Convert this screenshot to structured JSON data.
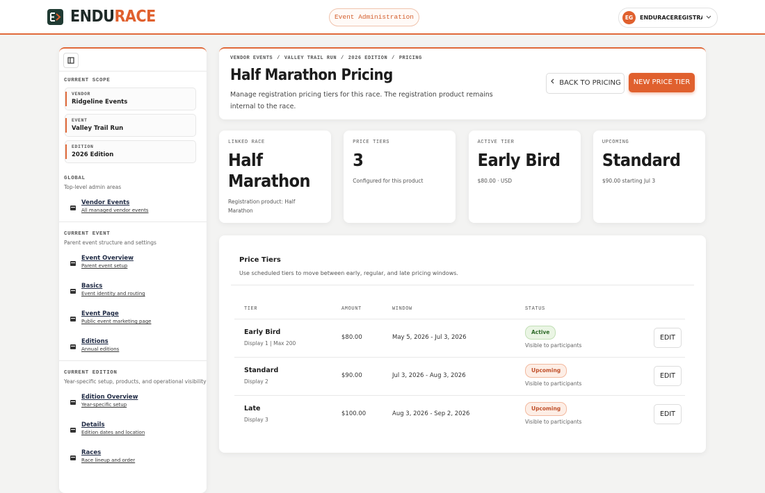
{
  "header": {
    "logo_prefix": "ENDU",
    "logo_suffix": "RACE",
    "badge": "Event Administration",
    "user_initials": "EG",
    "user_name": "ENDURACEREGISTRAT..."
  },
  "sidebar": {
    "scope_title": "CURRENT SCOPE",
    "scope": [
      {
        "label": "VENDOR",
        "value": "Ridgeline Events"
      },
      {
        "label": "EVENT",
        "value": "Valley Trail Run"
      },
      {
        "label": "EDITION",
        "value": "2026 Edition"
      }
    ],
    "sections": [
      {
        "title": "GLOBAL",
        "subtitle": "Top-level admin areas",
        "items": [
          {
            "title": "Vendor Events",
            "subtitle": "All managed vendor events"
          }
        ]
      },
      {
        "title": "CURRENT EVENT",
        "subtitle": "Parent event structure and settings",
        "items": [
          {
            "title": "Event Overview",
            "subtitle": "Parent event setup"
          },
          {
            "title": "Basics",
            "subtitle": "Event identity and routing"
          },
          {
            "title": "Event Page",
            "subtitle": "Public event marketing page"
          },
          {
            "title": "Editions",
            "subtitle": "Annual editions"
          }
        ]
      },
      {
        "title": "CURRENT EDITION",
        "subtitle": "Year-specific setup, products, and operational visibility",
        "items": [
          {
            "title": "Edition Overview",
            "subtitle": "Year-specific setup"
          },
          {
            "title": "Details",
            "subtitle": "Edition dates and location"
          },
          {
            "title": "Races",
            "subtitle": "Race lineup and order"
          }
        ]
      }
    ]
  },
  "page": {
    "breadcrumb": [
      "VENDOR EVENTS",
      "VALLEY TRAIL RUN",
      "2026 EDITION",
      "PRICING"
    ],
    "breadcrumb_separator": "/",
    "title": "Half Marathon Pricing",
    "description": "Manage registration pricing tiers for this race. The registration product remains internal to the race.",
    "back_button": "BACK TO PRICING",
    "new_button": "NEW PRICE TIER"
  },
  "stats": [
    {
      "label": "LINKED RACE",
      "value": "Half Marathon",
      "note": "Registration product: Half Marathon"
    },
    {
      "label": "PRICE TIERS",
      "value": 3,
      "note": "Configured for this product"
    },
    {
      "label": "ACTIVE TIER",
      "value": "Early Bird",
      "note": "$80.00 · USD"
    },
    {
      "label": "UPCOMING",
      "value": "Standard",
      "note": "$90.00 starting Jul 3"
    }
  ],
  "table": {
    "title": "Price Tiers",
    "subtitle": "Use scheduled tiers to move between early, regular, and late pricing windows.",
    "columns": [
      "TIER",
      "AMOUNT",
      "WINDOW",
      "STATUS"
    ],
    "rows": [
      {
        "tier": "Early Bird",
        "detail": "Display 1 | Max 200",
        "amount": "$80.00",
        "window": "May 5, 2026 - Jul 3, 2026",
        "status": "Active",
        "status_note": "Visible to participants",
        "action": "EDIT"
      },
      {
        "tier": "Standard",
        "detail": "Display 2",
        "amount": "$90.00",
        "window": "Jul 3, 2026 - Aug 3, 2026",
        "status": "Upcoming",
        "status_note": "Visible to participants",
        "action": "EDIT"
      },
      {
        "tier": "Late",
        "detail": "Display 3",
        "amount": "$100.00",
        "window": "Aug 3, 2026 - Sep 2, 2026",
        "status": "Upcoming",
        "status_note": "Visible to participants",
        "action": "EDIT"
      }
    ]
  }
}
